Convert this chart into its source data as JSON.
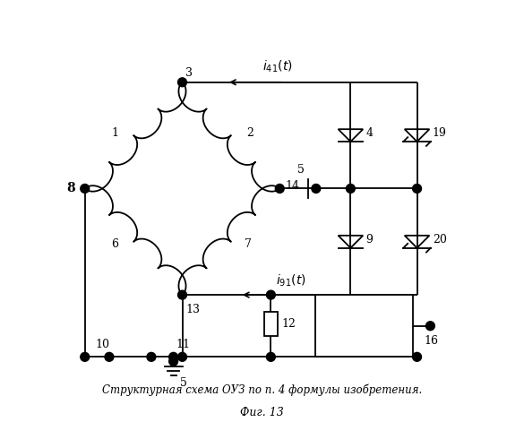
{
  "title": "Структурная схема ОУЗ по п. 4 формулы изобретения.",
  "subtitle": "Фиг. 13",
  "bg_color": "#ffffff",
  "line_color": "#000000",
  "figsize": [
    5.85,
    5.0
  ],
  "dpi": 100
}
